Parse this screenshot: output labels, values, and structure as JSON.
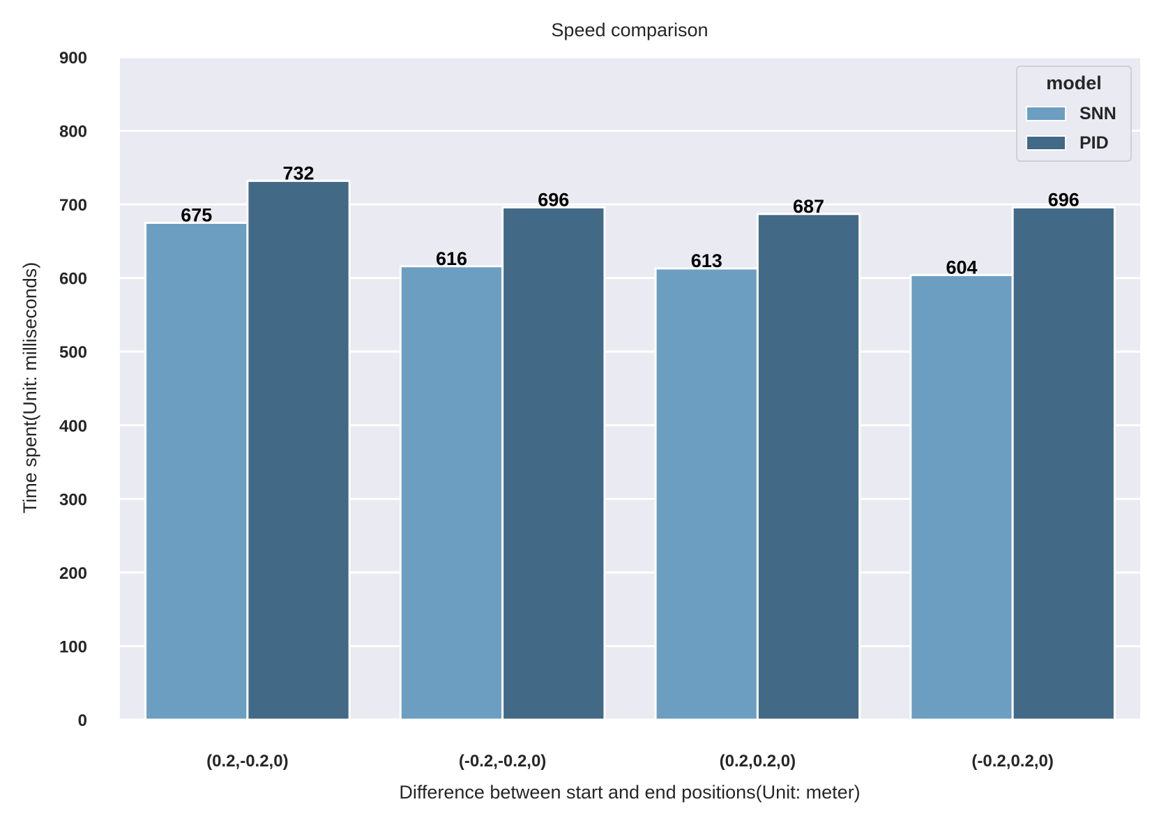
{
  "chart_data": {
    "type": "bar",
    "title": "Speed comparison",
    "xlabel": "Difference between start and end positions(Unit: meter)",
    "ylabel": "Time spent(Unit: milliseconds)",
    "categories": [
      "(0.2,-0.2,0)",
      "(-0.2,-0.2,0)",
      "(0.2,0.2,0)",
      "(-0.2,0.2,0)"
    ],
    "series": [
      {
        "name": "SNN",
        "values": [
          675,
          616,
          613,
          604
        ],
        "color": "#6c9ec1"
      },
      {
        "name": "PID",
        "values": [
          732,
          696,
          687,
          696
        ],
        "color": "#426986"
      }
    ],
    "ylim": [
      0,
      900
    ],
    "yticks": [
      0,
      100,
      200,
      300,
      400,
      500,
      600,
      700,
      800,
      900
    ],
    "grid": true,
    "legend": {
      "title": "model",
      "position": "top-right"
    },
    "colors": {
      "background": "#eaeaf2",
      "grid": "#ffffff",
      "text": "#262626"
    }
  }
}
